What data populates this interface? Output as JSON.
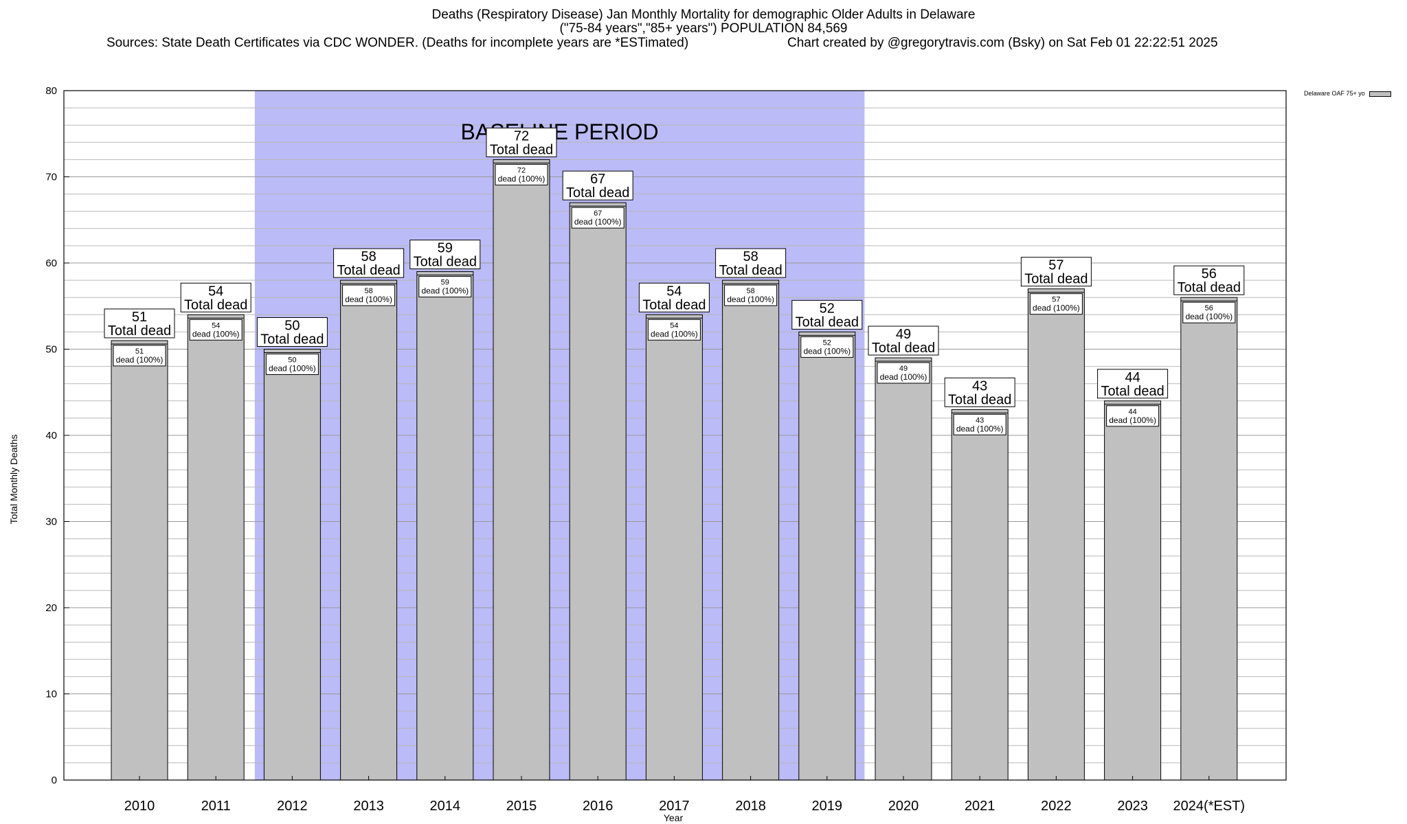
{
  "chart_data": {
    "type": "bar",
    "title_lines": [
      "Deaths (Respiratory Disease) Jan Monthly Mortality for demographic Older Adults in Delaware",
      "(\"75-84 years\",\"85+ years\") POPULATION 84,569"
    ],
    "sources": "Sources: State Death Certificates via CDC WONDER. (Deaths for incomplete years are *ESTimated)",
    "credit": "Chart created by @gregorytravis.com (Bsky) on Sat Feb 01 22:22:51 2025",
    "xlabel": "Year",
    "ylabel": "Total Monthly Deaths",
    "ylim": [
      0,
      80
    ],
    "yticks": [
      0,
      10,
      20,
      30,
      40,
      50,
      60,
      70,
      80
    ],
    "grid": true,
    "categories": [
      "2010",
      "2011",
      "2012",
      "2013",
      "2014",
      "2015",
      "2016",
      "2017",
      "2018",
      "2019",
      "2020",
      "2021",
      "2022",
      "2023",
      "2024(*EST)"
    ],
    "series": [
      {
        "name": "Delaware OAF 75+ yo",
        "values": [
          51,
          54,
          50,
          58,
          59,
          72,
          67,
          54,
          58,
          52,
          49,
          43,
          57,
          44,
          56
        ],
        "color": "#c0c0c0"
      }
    ],
    "total_label": "Total dead",
    "inner_label": "dead (100%)",
    "baseline": {
      "label": "BASELINE PERIOD",
      "start": "2012",
      "end": "2019",
      "color": "#bbbbf7"
    },
    "legend_placement": "top-right"
  }
}
